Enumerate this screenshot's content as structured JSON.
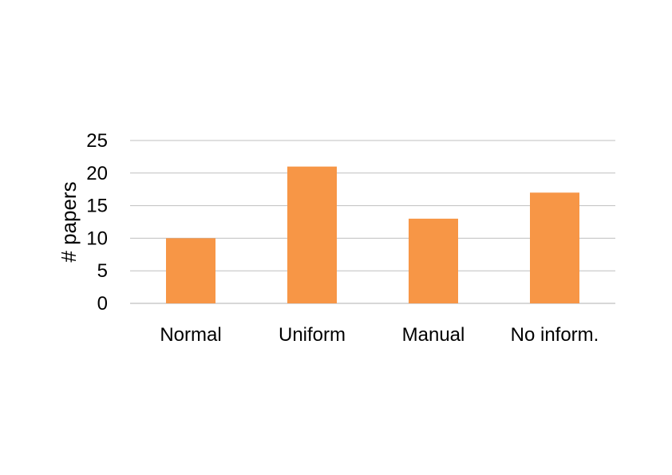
{
  "chart_data": {
    "type": "bar",
    "categories": [
      "Normal",
      "Uniform",
      "Manual",
      "No inform."
    ],
    "values": [
      10,
      21,
      13,
      17
    ],
    "title": "",
    "xlabel": "",
    "ylabel": "# papers",
    "ylim": [
      0,
      25
    ],
    "yticks": [
      "0",
      "5",
      "10",
      "15",
      "20",
      "25"
    ],
    "grid": true,
    "legend": "none",
    "bar_color": "#F79646"
  }
}
